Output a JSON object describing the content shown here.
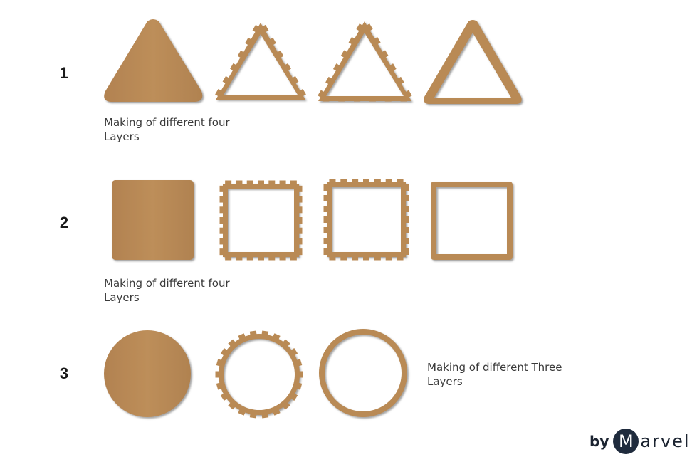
{
  "colors": {
    "cardboard": "#b98a55",
    "cardboard_dark": "#a8794a",
    "shadow": "#6a6a6a",
    "text": "#3a3a3a",
    "brand": "#1f2b3d"
  },
  "rows": [
    {
      "number": "1",
      "shape": "triangle",
      "layers": [
        "solid",
        "tabbed-frame",
        "tabbed-frame",
        "plain-frame"
      ],
      "caption_lines": [
        "Making of different four",
        "Layers"
      ]
    },
    {
      "number": "2",
      "shape": "square",
      "layers": [
        "solid",
        "tabbed-frame",
        "tabbed-frame",
        "plain-frame"
      ],
      "caption_lines": [
        "Making of different four",
        "Layers"
      ]
    },
    {
      "number": "3",
      "shape": "circle",
      "layers": [
        "solid",
        "tabbed-frame",
        "plain-frame"
      ],
      "caption_lines": [
        "Making of different Three",
        "Layers"
      ]
    }
  ],
  "branding": {
    "prefix": "by",
    "initial": "M",
    "rest": "arvel"
  }
}
